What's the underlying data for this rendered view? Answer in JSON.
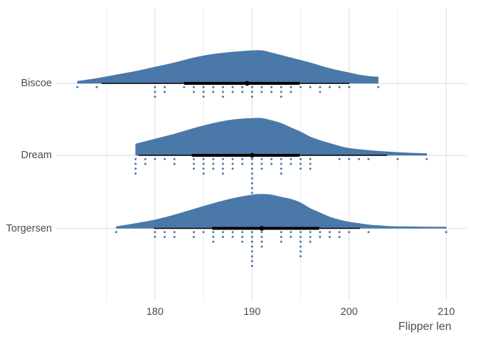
{
  "chart_data": {
    "type": "raincloud",
    "title": "",
    "xlabel": "Flipper len",
    "x_axis": {
      "domain": [
        169.9,
        212.1
      ],
      "major_ticks": [
        180,
        190,
        200,
        210
      ],
      "minor_ticks": [
        175,
        185,
        195,
        205
      ],
      "tick_labels": [
        "180",
        "190",
        "200",
        "210"
      ]
    },
    "y_categories": [
      "Biscoe",
      "Dream",
      "Torgersen"
    ],
    "colors": {
      "slab": "#4a78a8",
      "rain_dot": "#4a78a8",
      "interval": "#000000",
      "point": "#000000",
      "grid_major": "#e2e2e2",
      "grid_minor": "#eeeeee",
      "axis_text": "#4d4d4d",
      "background": "#ffffff"
    },
    "series": [
      {
        "island": "Biscoe",
        "min": 172,
        "max": 203,
        "median": 189.5,
        "interval66": [
          183.0,
          194.9
        ],
        "interval95": [
          174.5,
          200.0
        ],
        "density": [
          [
            172,
            3
          ],
          [
            174,
            7
          ],
          [
            176,
            12
          ],
          [
            178,
            17
          ],
          [
            180,
            23
          ],
          [
            182,
            29
          ],
          [
            184,
            36
          ],
          [
            186,
            41
          ],
          [
            188,
            44
          ],
          [
            190,
            46
          ],
          [
            191,
            46
          ],
          [
            192,
            43
          ],
          [
            194,
            36
          ],
          [
            196,
            29
          ],
          [
            198,
            21
          ],
          [
            200,
            15
          ],
          [
            201,
            12
          ],
          [
            202,
            10
          ],
          [
            203,
            9
          ]
        ],
        "rain": [
          [
            172,
            1
          ],
          [
            174,
            1
          ],
          [
            180,
            3
          ],
          [
            181,
            2
          ],
          [
            183,
            1
          ],
          [
            184,
            2
          ],
          [
            185,
            3
          ],
          [
            186,
            2
          ],
          [
            187,
            3
          ],
          [
            188,
            2
          ],
          [
            189,
            2
          ],
          [
            190,
            3
          ],
          [
            191,
            2
          ],
          [
            192,
            2
          ],
          [
            193,
            3
          ],
          [
            194,
            2
          ],
          [
            195,
            1
          ],
          [
            196,
            1
          ],
          [
            197,
            2
          ],
          [
            198,
            1
          ],
          [
            199,
            1
          ],
          [
            200,
            1
          ],
          [
            203,
            1
          ]
        ]
      },
      {
        "island": "Dream",
        "min": 178,
        "max": 208,
        "median": 190,
        "interval66": [
          183.8,
          194.9
        ],
        "interval95": [
          178.3,
          203.9
        ],
        "density": [
          [
            178,
            16
          ],
          [
            180,
            23
          ],
          [
            182,
            30
          ],
          [
            184,
            38
          ],
          [
            186,
            45
          ],
          [
            188,
            50
          ],
          [
            190,
            52
          ],
          [
            191,
            52
          ],
          [
            192,
            49
          ],
          [
            193,
            45
          ],
          [
            194,
            39
          ],
          [
            195,
            33
          ],
          [
            196,
            26
          ],
          [
            197,
            21
          ],
          [
            198,
            17
          ],
          [
            199,
            13
          ],
          [
            200,
            10
          ],
          [
            202,
            7
          ],
          [
            204,
            5
          ],
          [
            206,
            3.5
          ],
          [
            208,
            2.5
          ]
        ],
        "rain": [
          [
            178,
            4
          ],
          [
            179,
            2
          ],
          [
            180,
            1
          ],
          [
            181,
            1
          ],
          [
            182,
            2
          ],
          [
            184,
            3
          ],
          [
            185,
            4
          ],
          [
            186,
            3
          ],
          [
            187,
            4
          ],
          [
            188,
            3
          ],
          [
            189,
            2
          ],
          [
            190,
            8
          ],
          [
            191,
            3
          ],
          [
            192,
            2
          ],
          [
            193,
            4
          ],
          [
            194,
            2
          ],
          [
            195,
            3
          ],
          [
            196,
            3
          ],
          [
            199,
            1
          ],
          [
            200,
            1
          ],
          [
            201,
            1
          ],
          [
            202,
            1
          ],
          [
            205,
            1
          ],
          [
            208,
            1
          ]
        ]
      },
      {
        "island": "Torgersen",
        "min": 176,
        "max": 210,
        "median": 191,
        "interval66": [
          185.9,
          196.9
        ],
        "interval95": [
          179.9,
          201.1
        ],
        "density": [
          [
            176,
            2.5
          ],
          [
            178,
            7
          ],
          [
            180,
            12
          ],
          [
            182,
            19
          ],
          [
            184,
            27
          ],
          [
            186,
            35
          ],
          [
            188,
            42
          ],
          [
            190,
            47
          ],
          [
            191,
            48
          ],
          [
            192,
            47
          ],
          [
            193,
            44
          ],
          [
            194,
            41
          ],
          [
            195,
            36
          ],
          [
            196,
            28
          ],
          [
            197,
            22
          ],
          [
            198,
            16
          ],
          [
            199,
            12
          ],
          [
            200,
            9
          ],
          [
            201,
            7
          ],
          [
            202,
            5
          ],
          [
            203,
            4
          ],
          [
            204,
            3
          ],
          [
            205,
            2.5
          ],
          [
            206,
            2.5
          ],
          [
            208,
            2
          ],
          [
            210,
            2
          ]
        ],
        "rain": [
          [
            176,
            1
          ],
          [
            180,
            2
          ],
          [
            181,
            2
          ],
          [
            182,
            2
          ],
          [
            184,
            2
          ],
          [
            185,
            1
          ],
          [
            186,
            3
          ],
          [
            187,
            2
          ],
          [
            188,
            2
          ],
          [
            189,
            3
          ],
          [
            190,
            8
          ],
          [
            191,
            4
          ],
          [
            193,
            3
          ],
          [
            194,
            2
          ],
          [
            195,
            6
          ],
          [
            196,
            3
          ],
          [
            197,
            2
          ],
          [
            198,
            2
          ],
          [
            199,
            2
          ],
          [
            200,
            1
          ],
          [
            202,
            1
          ],
          [
            210,
            1
          ]
        ]
      }
    ]
  }
}
